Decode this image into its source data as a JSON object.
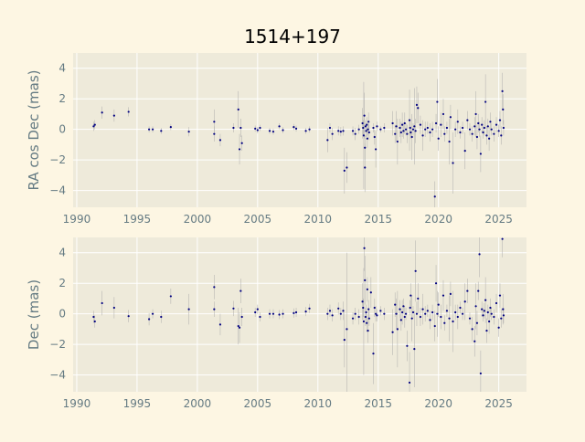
{
  "figure": {
    "title": "1514+197",
    "background": "#fdf6e3",
    "axes_background": "#eeeada",
    "point_color": "#000080",
    "errorbar_color": "#aaaaaa",
    "tick_color": "#657b83"
  },
  "chart_data": [
    {
      "type": "scatter",
      "title": "1514+197",
      "xlabel": "",
      "ylabel": "RA cos Dec (mas)",
      "xlim": [
        1989.7,
        2027.3
      ],
      "ylim": [
        -5.1,
        5.0
      ],
      "xticks": [
        1990,
        1995,
        2000,
        2005,
        2010,
        2015,
        2020,
        2025
      ],
      "yticks": [
        -4,
        -2,
        0,
        2,
        4
      ],
      "grid": true,
      "legend": "none",
      "points": [
        [
          1991.4,
          0.2,
          0.3
        ],
        [
          1991.5,
          0.3,
          0.3
        ],
        [
          1992.1,
          1.1,
          0.4
        ],
        [
          1993.1,
          0.9,
          0.4
        ],
        [
          1994.3,
          1.15,
          0.3
        ],
        [
          1996.0,
          0.0,
          0.2
        ],
        [
          1996.3,
          0.0,
          0.2
        ],
        [
          1997.0,
          -0.1,
          0.2
        ],
        [
          1997.8,
          0.15,
          0.2
        ],
        [
          1999.3,
          -0.15,
          0.3
        ],
        [
          2001.4,
          0.5,
          0.8
        ],
        [
          2001.4,
          -0.3,
          0.5
        ],
        [
          2001.9,
          -0.7,
          0.4
        ],
        [
          2003.0,
          0.1,
          0.3
        ],
        [
          2003.4,
          1.3,
          1.2
        ],
        [
          2003.5,
          -1.3,
          1.0
        ],
        [
          2003.6,
          0.1,
          0.6
        ],
        [
          2003.7,
          -0.9,
          0.5
        ],
        [
          2004.8,
          0.05,
          0.2
        ],
        [
          2005.0,
          -0.05,
          0.2
        ],
        [
          2005.2,
          0.1,
          0.2
        ],
        [
          2006.0,
          -0.1,
          0.2
        ],
        [
          2006.3,
          -0.15,
          0.2
        ],
        [
          2006.8,
          0.2,
          0.2
        ],
        [
          2007.1,
          -0.05,
          0.2
        ],
        [
          2008.0,
          0.15,
          0.2
        ],
        [
          2008.2,
          0.05,
          0.2
        ],
        [
          2009.0,
          -0.1,
          0.2
        ],
        [
          2009.3,
          0.0,
          0.2
        ],
        [
          2010.8,
          -0.7,
          0.8
        ],
        [
          2011.0,
          0.1,
          0.3
        ],
        [
          2011.2,
          -0.3,
          0.4
        ],
        [
          2011.7,
          -0.1,
          0.3
        ],
        [
          2011.9,
          -0.15,
          0.3
        ],
        [
          2012.1,
          -0.1,
          0.3
        ],
        [
          2012.2,
          -2.7,
          1.5
        ],
        [
          2012.4,
          -2.5,
          1.0
        ],
        [
          2012.9,
          -0.1,
          0.3
        ],
        [
          2013.1,
          -0.3,
          0.4
        ],
        [
          2013.4,
          0.0,
          0.3
        ],
        [
          2013.7,
          0.4,
          1.0
        ],
        [
          2013.75,
          0.1,
          0.5
        ],
        [
          2013.8,
          -0.4,
          3.5
        ],
        [
          2013.85,
          0.9,
          1.5
        ],
        [
          2013.9,
          -1.2,
          0.8
        ],
        [
          2013.95,
          0.2,
          0.4
        ],
        [
          2014.0,
          -0.1,
          0.4
        ],
        [
          2014.05,
          0.3,
          0.5
        ],
        [
          2014.1,
          -0.6,
          0.6
        ],
        [
          2014.15,
          0.0,
          0.4
        ],
        [
          2014.2,
          0.5,
          0.6
        ],
        [
          2014.25,
          -0.2,
          0.5
        ],
        [
          2013.9,
          -2.5,
          1.6
        ],
        [
          2014.6,
          0.1,
          0.3
        ],
        [
          2014.7,
          -0.5,
          0.5
        ],
        [
          2014.8,
          -1.3,
          1.2
        ],
        [
          2014.9,
          0.2,
          0.3
        ],
        [
          2015.2,
          0.0,
          0.2
        ],
        [
          2015.5,
          0.1,
          0.3
        ],
        [
          2016.2,
          0.4,
          0.8
        ],
        [
          2016.4,
          -0.3,
          0.6
        ],
        [
          2016.5,
          0.2,
          1.0
        ],
        [
          2016.6,
          -0.8,
          1.5
        ],
        [
          2016.8,
          0.1,
          0.6
        ],
        [
          2016.9,
          -0.2,
          0.7
        ],
        [
          2017.0,
          0.3,
          0.8
        ],
        [
          2017.1,
          -0.1,
          0.5
        ],
        [
          2017.2,
          0.4,
          0.7
        ],
        [
          2017.3,
          0.0,
          0.4
        ],
        [
          2017.4,
          -0.3,
          0.6
        ],
        [
          2017.6,
          0.6,
          2.0
        ],
        [
          2017.65,
          0.1,
          0.5
        ],
        [
          2017.7,
          -0.2,
          0.4
        ],
        [
          2017.8,
          -0.5,
          1.5
        ],
        [
          2017.9,
          0.0,
          0.4
        ],
        [
          2018.0,
          0.2,
          2.5
        ],
        [
          2018.1,
          -0.1,
          0.8
        ],
        [
          2018.2,
          1.6,
          1.2
        ],
        [
          2018.3,
          1.4,
          1.0
        ],
        [
          2018.5,
          0.3,
          0.6
        ],
        [
          2018.7,
          -0.4,
          1.0
        ],
        [
          2018.9,
          0.0,
          0.5
        ],
        [
          2019.1,
          0.1,
          0.4
        ],
        [
          2019.3,
          -0.2,
          0.6
        ],
        [
          2019.5,
          0.0,
          0.5
        ],
        [
          2019.7,
          -4.4,
          1.0
        ],
        [
          2019.8,
          0.4,
          0.6
        ],
        [
          2019.9,
          1.8,
          1.5
        ],
        [
          2020.0,
          -0.6,
          0.8
        ],
        [
          2020.2,
          0.3,
          0.8
        ],
        [
          2020.4,
          1.0,
          1.0
        ],
        [
          2020.5,
          -0.3,
          0.5
        ],
        [
          2020.7,
          0.1,
          0.4
        ],
        [
          2020.9,
          -0.8,
          1.5
        ],
        [
          2021.0,
          0.8,
          0.8
        ],
        [
          2021.2,
          -2.2,
          2.0
        ],
        [
          2021.4,
          0.0,
          0.5
        ],
        [
          2021.6,
          0.5,
          0.8
        ],
        [
          2021.8,
          -0.2,
          0.4
        ],
        [
          2022.0,
          0.1,
          0.4
        ],
        [
          2022.2,
          -1.4,
          1.2
        ],
        [
          2022.4,
          0.6,
          0.6
        ],
        [
          2022.6,
          0.0,
          0.4
        ],
        [
          2022.8,
          -0.3,
          0.5
        ],
        [
          2023.0,
          0.2,
          0.6
        ],
        [
          2023.1,
          1.0,
          1.5
        ],
        [
          2023.2,
          -0.5,
          0.8
        ],
        [
          2023.3,
          0.4,
          0.6
        ],
        [
          2023.4,
          0.0,
          0.5
        ],
        [
          2023.5,
          -1.6,
          1.2
        ],
        [
          2023.6,
          0.3,
          0.5
        ],
        [
          2023.7,
          -0.2,
          0.4
        ],
        [
          2023.8,
          0.1,
          0.5
        ],
        [
          2023.9,
          1.8,
          1.8
        ],
        [
          2024.0,
          -0.4,
          0.6
        ],
        [
          2024.1,
          0.2,
          0.5
        ],
        [
          2024.2,
          -0.6,
          0.8
        ],
        [
          2024.3,
          0.5,
          0.6
        ],
        [
          2024.4,
          0.0,
          0.4
        ],
        [
          2024.6,
          -0.3,
          0.5
        ],
        [
          2024.8,
          0.3,
          0.5
        ],
        [
          2025.0,
          -0.1,
          0.4
        ],
        [
          2025.1,
          0.6,
          0.6
        ],
        [
          2025.2,
          -0.4,
          0.6
        ],
        [
          2025.3,
          2.5,
          1.2
        ],
        [
          2025.35,
          1.3,
          1.0
        ],
        [
          2025.4,
          0.1,
          0.5
        ]
      ]
    },
    {
      "type": "scatter",
      "title": "",
      "xlabel": "",
      "ylabel": "Dec (mas)",
      "xlim": [
        1989.7,
        2027.3
      ],
      "ylim": [
        -5.1,
        5.0
      ],
      "xticks": [
        1990,
        1995,
        2000,
        2005,
        2010,
        2015,
        2020,
        2025
      ],
      "yticks": [
        -4,
        -2,
        0,
        2,
        4
      ],
      "grid": true,
      "legend": "none",
      "points": [
        [
          1991.4,
          -0.2,
          0.4
        ],
        [
          1991.5,
          -0.5,
          0.4
        ],
        [
          1992.1,
          0.7,
          0.8
        ],
        [
          1993.1,
          0.4,
          0.7
        ],
        [
          1994.3,
          -0.15,
          0.4
        ],
        [
          1996.0,
          -0.35,
          0.4
        ],
        [
          1996.3,
          0.0,
          0.3
        ],
        [
          1997.0,
          -0.2,
          0.4
        ],
        [
          1997.8,
          1.15,
          0.5
        ],
        [
          1999.3,
          0.3,
          1.0
        ],
        [
          2001.4,
          1.75,
          0.8
        ],
        [
          2001.4,
          0.3,
          0.5
        ],
        [
          2001.9,
          -0.7,
          0.7
        ],
        [
          2003.0,
          0.35,
          0.5
        ],
        [
          2003.4,
          -0.8,
          1.2
        ],
        [
          2003.5,
          -0.9,
          1.0
        ],
        [
          2003.6,
          1.5,
          0.8
        ],
        [
          2003.7,
          -0.2,
          0.6
        ],
        [
          2004.8,
          0.1,
          0.3
        ],
        [
          2005.0,
          0.3,
          0.3
        ],
        [
          2005.2,
          -0.2,
          0.3
        ],
        [
          2006.0,
          0.0,
          0.3
        ],
        [
          2006.3,
          0.0,
          0.3
        ],
        [
          2006.8,
          -0.05,
          0.3
        ],
        [
          2007.1,
          0.0,
          0.3
        ],
        [
          2008.0,
          0.05,
          0.3
        ],
        [
          2008.2,
          0.1,
          0.3
        ],
        [
          2009.0,
          0.15,
          0.3
        ],
        [
          2009.3,
          0.35,
          0.3
        ],
        [
          2010.8,
          0.0,
          0.4
        ],
        [
          2011.0,
          0.2,
          0.4
        ],
        [
          2011.2,
          -0.1,
          0.4
        ],
        [
          2011.7,
          0.35,
          0.4
        ],
        [
          2011.9,
          0.0,
          0.4
        ],
        [
          2012.1,
          0.2,
          0.6
        ],
        [
          2012.2,
          -1.7,
          1.8
        ],
        [
          2012.4,
          -1.0,
          5.0
        ],
        [
          2012.9,
          -0.3,
          0.4
        ],
        [
          2013.1,
          0.0,
          0.4
        ],
        [
          2013.4,
          -0.2,
          0.5
        ],
        [
          2013.7,
          0.8,
          1.2
        ],
        [
          2013.75,
          0.4,
          0.6
        ],
        [
          2013.8,
          -0.5,
          3.5
        ],
        [
          2013.85,
          4.3,
          1.5
        ],
        [
          2013.9,
          2.2,
          1.6
        ],
        [
          2013.95,
          -0.2,
          0.6
        ],
        [
          2014.0,
          0.1,
          0.5
        ],
        [
          2014.05,
          -0.6,
          0.6
        ],
        [
          2014.1,
          1.6,
          0.8
        ],
        [
          2014.15,
          -1.1,
          0.8
        ],
        [
          2014.2,
          0.3,
          0.6
        ],
        [
          2014.25,
          -0.3,
          0.5
        ],
        [
          2014.4,
          1.4,
          1.0
        ],
        [
          2014.6,
          -2.6,
          2.0
        ],
        [
          2014.7,
          0.4,
          0.6
        ],
        [
          2014.8,
          0.0,
          0.5
        ],
        [
          2014.9,
          -0.1,
          0.4
        ],
        [
          2015.2,
          0.2,
          0.3
        ],
        [
          2015.5,
          0.0,
          0.4
        ],
        [
          2016.2,
          -1.2,
          1.5
        ],
        [
          2016.4,
          0.6,
          0.8
        ],
        [
          2016.5,
          0.0,
          1.0
        ],
        [
          2016.6,
          -1.0,
          2.5
        ],
        [
          2016.8,
          0.3,
          0.6
        ],
        [
          2016.9,
          -0.4,
          0.7
        ],
        [
          2017.0,
          0.1,
          0.8
        ],
        [
          2017.1,
          0.5,
          0.5
        ],
        [
          2017.2,
          -0.2,
          0.7
        ],
        [
          2017.3,
          0.0,
          0.4
        ],
        [
          2017.4,
          -2.1,
          1.0
        ],
        [
          2017.6,
          -4.5,
          2.0
        ],
        [
          2017.65,
          0.4,
          0.5
        ],
        [
          2017.7,
          1.2,
          0.8
        ],
        [
          2017.8,
          -0.3,
          1.5
        ],
        [
          2017.9,
          0.1,
          0.4
        ],
        [
          2018.0,
          -2.3,
          2.5
        ],
        [
          2018.1,
          2.8,
          2.0
        ],
        [
          2018.2,
          0.0,
          0.8
        ],
        [
          2018.3,
          1.0,
          1.0
        ],
        [
          2018.5,
          -0.2,
          0.6
        ],
        [
          2018.7,
          0.3,
          1.0
        ],
        [
          2018.9,
          0.0,
          0.5
        ],
        [
          2019.1,
          0.2,
          0.4
        ],
        [
          2019.3,
          -0.4,
          0.6
        ],
        [
          2019.5,
          0.1,
          0.5
        ],
        [
          2019.7,
          -0.8,
          1.0
        ],
        [
          2019.8,
          2.0,
          1.2
        ],
        [
          2019.9,
          0.0,
          1.5
        ],
        [
          2020.0,
          0.6,
          0.8
        ],
        [
          2020.2,
          -0.2,
          0.8
        ],
        [
          2020.4,
          1.2,
          1.0
        ],
        [
          2020.5,
          -0.6,
          0.5
        ],
        [
          2020.7,
          0.2,
          0.4
        ],
        [
          2020.9,
          -0.3,
          1.5
        ],
        [
          2021.0,
          1.3,
          0.8
        ],
        [
          2021.2,
          -0.5,
          2.0
        ],
        [
          2021.4,
          0.1,
          0.5
        ],
        [
          2021.6,
          -0.2,
          0.8
        ],
        [
          2021.8,
          0.4,
          0.4
        ],
        [
          2022.0,
          0.0,
          0.4
        ],
        [
          2022.2,
          0.8,
          1.2
        ],
        [
          2022.4,
          1.5,
          0.8
        ],
        [
          2022.6,
          -0.3,
          0.4
        ],
        [
          2022.8,
          -1.0,
          0.8
        ],
        [
          2023.0,
          -1.8,
          1.0
        ],
        [
          2023.1,
          0.5,
          1.5
        ],
        [
          2023.2,
          -0.6,
          0.8
        ],
        [
          2023.3,
          1.5,
          0.6
        ],
        [
          2023.4,
          3.9,
          1.5
        ],
        [
          2023.5,
          -3.9,
          1.5
        ],
        [
          2023.6,
          0.3,
          0.5
        ],
        [
          2023.7,
          -0.1,
          0.4
        ],
        [
          2023.8,
          0.2,
          0.5
        ],
        [
          2023.9,
          0.9,
          1.5
        ],
        [
          2024.0,
          -1.1,
          0.8
        ],
        [
          2024.1,
          0.1,
          0.5
        ],
        [
          2024.2,
          -0.5,
          0.8
        ],
        [
          2024.3,
          0.4,
          0.6
        ],
        [
          2024.4,
          0.0,
          0.4
        ],
        [
          2024.6,
          -0.2,
          0.5
        ],
        [
          2024.8,
          0.7,
          0.6
        ],
        [
          2025.0,
          -0.9,
          0.6
        ],
        [
          2025.1,
          1.2,
          0.8
        ],
        [
          2025.2,
          -0.3,
          0.6
        ],
        [
          2025.3,
          4.9,
          1.2
        ],
        [
          2025.35,
          0.3,
          1.0
        ],
        [
          2025.4,
          -0.1,
          0.5
        ]
      ]
    }
  ]
}
